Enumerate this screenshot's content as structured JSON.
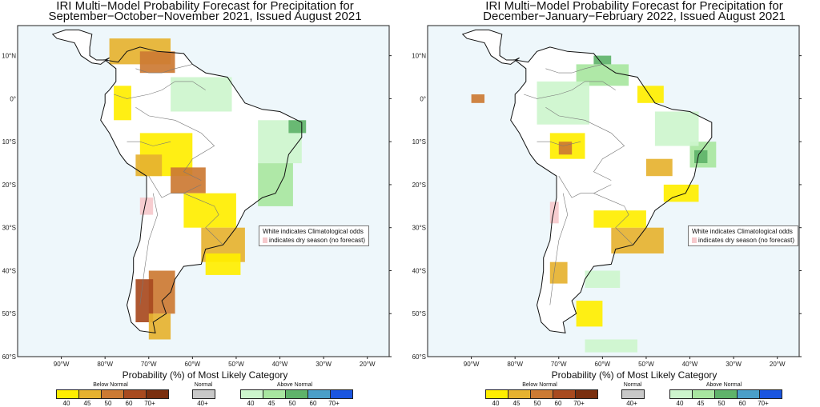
{
  "maps": [
    {
      "title_line1": "IRI Multi−Model Probability Forecast for Precipitation for",
      "title_line2": "September−October−November 2021, Issued August 2021",
      "note_white": "White indicates Climatological odds",
      "note_dry": "indicates dry season (no forecast)",
      "patches": [
        {
          "category": "below",
          "level": 2,
          "lon": -79,
          "lat": 14,
          "w": 14,
          "h": 6
        },
        {
          "category": "below",
          "level": 3,
          "lon": -72,
          "lat": 11,
          "w": 8,
          "h": 5
        },
        {
          "category": "below",
          "level": 1,
          "lon": -78,
          "lat": 3,
          "w": 4,
          "h": 8
        },
        {
          "category": "above",
          "level": 1,
          "lon": -65,
          "lat": 5,
          "w": 14,
          "h": 8
        },
        {
          "category": "below",
          "level": 1,
          "lon": -72,
          "lat": -8,
          "w": 12,
          "h": 10
        },
        {
          "category": "below",
          "level": 3,
          "lon": -65,
          "lat": -16,
          "w": 8,
          "h": 6
        },
        {
          "category": "below",
          "level": 2,
          "lon": -73,
          "lat": -13,
          "w": 6,
          "h": 5
        },
        {
          "category": "below",
          "level": 1,
          "lon": -62,
          "lat": -22,
          "w": 12,
          "h": 8
        },
        {
          "category": "above",
          "level": 1,
          "lon": -45,
          "lat": -5,
          "w": 10,
          "h": 10
        },
        {
          "category": "above",
          "level": 2,
          "lon": -45,
          "lat": -15,
          "w": 8,
          "h": 10
        },
        {
          "category": "above",
          "level": 3,
          "lon": -38,
          "lat": -5,
          "w": 4,
          "h": 3
        },
        {
          "category": "below",
          "level": 2,
          "lon": -58,
          "lat": -30,
          "w": 10,
          "h": 8
        },
        {
          "category": "below",
          "level": 3,
          "lon": -70,
          "lat": -40,
          "w": 6,
          "h": 10
        },
        {
          "category": "below",
          "level": 4,
          "lon": -73,
          "lat": -42,
          "w": 4,
          "h": 10
        },
        {
          "category": "below",
          "level": 2,
          "lon": -70,
          "lat": -50,
          "w": 5,
          "h": 6
        },
        {
          "category": "below",
          "level": 1,
          "lon": -57,
          "lat": -36,
          "w": 8,
          "h": 5
        },
        {
          "category": "dry",
          "level": 1,
          "lon": -72,
          "lat": -23,
          "w": 3,
          "h": 4
        }
      ]
    },
    {
      "title_line1": "IRI Multi−Model Probability Forecast for Precipitation for",
      "title_line2": "December−January−February 2022, Issued August 2021",
      "note_white": "White indicates Climatological odds",
      "note_dry": "indicates dry season (no forecast)",
      "patches": [
        {
          "category": "above",
          "level": 2,
          "lon": -66,
          "lat": 8,
          "w": 12,
          "h": 5
        },
        {
          "category": "above",
          "level": 1,
          "lon": -75,
          "lat": 4,
          "w": 12,
          "h": 10
        },
        {
          "category": "above",
          "level": 3,
          "lon": -62,
          "lat": 10,
          "w": 4,
          "h": 2
        },
        {
          "category": "below",
          "level": 1,
          "lon": -52,
          "lat": 3,
          "w": 6,
          "h": 4
        },
        {
          "category": "below",
          "level": 1,
          "lon": -72,
          "lat": -8,
          "w": 8,
          "h": 6
        },
        {
          "category": "below",
          "level": 3,
          "lon": -70,
          "lat": -10,
          "w": 3,
          "h": 3
        },
        {
          "category": "below",
          "level": 2,
          "lon": -50,
          "lat": -14,
          "w": 6,
          "h": 4
        },
        {
          "category": "above",
          "level": 2,
          "lon": -40,
          "lat": -10,
          "w": 6,
          "h": 6
        },
        {
          "category": "above",
          "level": 3,
          "lon": -39,
          "lat": -12,
          "w": 3,
          "h": 3
        },
        {
          "category": "above",
          "level": 1,
          "lon": -48,
          "lat": -3,
          "w": 10,
          "h": 8
        },
        {
          "category": "below",
          "level": 2,
          "lon": -58,
          "lat": -30,
          "w": 12,
          "h": 6
        },
        {
          "category": "below",
          "level": 1,
          "lon": -62,
          "lat": -26,
          "w": 12,
          "h": 4
        },
        {
          "category": "below",
          "level": 1,
          "lon": -46,
          "lat": -20,
          "w": 8,
          "h": 4
        },
        {
          "category": "below",
          "level": 3,
          "lon": -90,
          "lat": 1,
          "w": 3,
          "h": 2
        },
        {
          "category": "below",
          "level": 2,
          "lon": -72,
          "lat": -38,
          "w": 4,
          "h": 5
        },
        {
          "category": "below",
          "level": 1,
          "lon": -66,
          "lat": -47,
          "w": 6,
          "h": 6
        },
        {
          "category": "above",
          "level": 1,
          "lon": -64,
          "lat": -56,
          "w": 12,
          "h": 3
        },
        {
          "category": "above",
          "level": 1,
          "lon": -64,
          "lat": -40,
          "w": 8,
          "h": 4
        },
        {
          "category": "dry",
          "level": 1,
          "lon": -72,
          "lat": -24,
          "w": 2,
          "h": 5
        }
      ]
    }
  ],
  "axes": {
    "lon_ticks": [
      "90°W",
      "80°W",
      "70°W",
      "60°W",
      "50°W",
      "40°W",
      "30°W",
      "20°W"
    ],
    "lat_ticks": [
      "10°N",
      "0°",
      "10°S",
      "20°S",
      "30°S",
      "40°S",
      "50°S",
      "60°S"
    ]
  },
  "legend": {
    "title": "Probability (%) of Most Likely Category",
    "below_label": "Below Normal",
    "normal_label": "Normal",
    "above_label": "Above Normal",
    "below_ticks": [
      "40",
      "45",
      "50",
      "60",
      "70+"
    ],
    "normal_ticks": [
      "40+"
    ],
    "above_ticks": [
      "40",
      "45",
      "50",
      "60",
      "70+"
    ],
    "below_colors": [
      "#ffee00",
      "#e6b230",
      "#cc7a33",
      "#a84a1f",
      "#7a2f0f"
    ],
    "normal_color": "#c8c8c8",
    "above_colors": [
      "#cdf5cd",
      "#a8e6a0",
      "#5fb36a",
      "#4a9fc8",
      "#1a55e0"
    ]
  },
  "colors": {
    "ocean": "#eef7fb",
    "land": "#ffffff",
    "dry": "#f6c9cc"
  }
}
